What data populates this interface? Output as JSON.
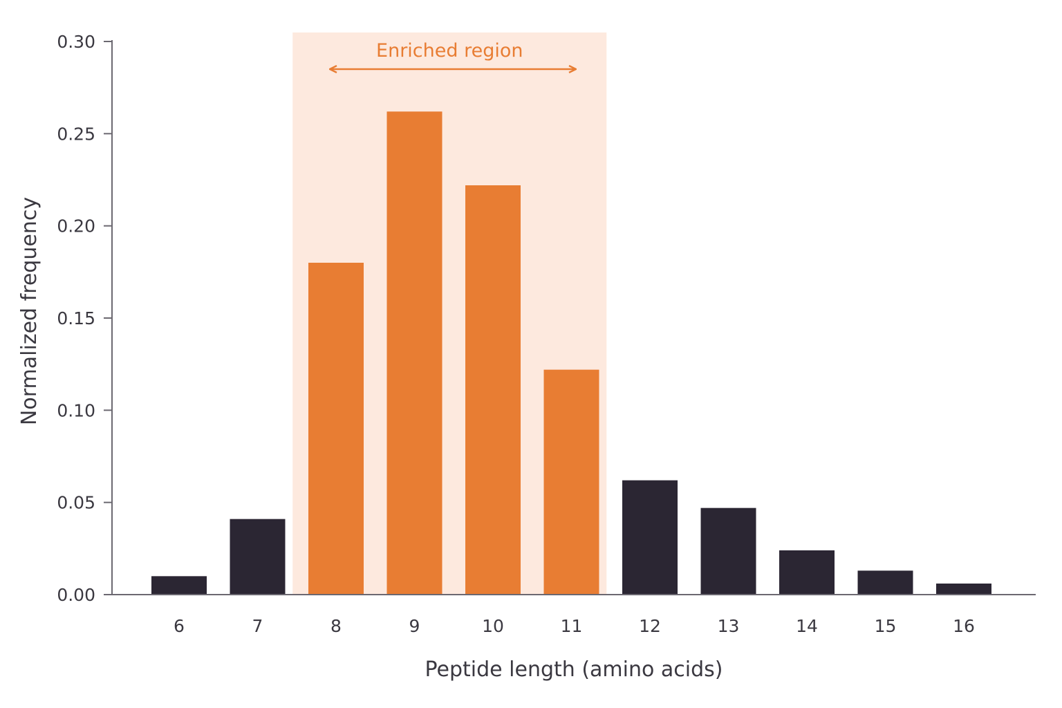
{
  "chart_data": {
    "type": "bar",
    "title": "",
    "xlabel": "Peptide length (amino acids)",
    "ylabel": "Normalized frequency",
    "categories": [
      "6",
      "7",
      "8",
      "9",
      "10",
      "11",
      "12",
      "13",
      "14",
      "15",
      "16"
    ],
    "values": [
      0.01,
      0.041,
      0.18,
      0.262,
      0.222,
      0.122,
      0.062,
      0.047,
      0.024,
      0.013,
      0.006
    ],
    "ylim": [
      0,
      0.3
    ],
    "yticks": [
      "0.00",
      "0.05",
      "0.10",
      "0.15",
      "0.20",
      "0.25",
      "0.30"
    ],
    "highlight": {
      "label": "Enriched region",
      "categories": [
        "8",
        "9",
        "10",
        "11"
      ],
      "color": "#e87d33",
      "band_color": "#fde9de"
    },
    "default_bar_color": "#2b2633",
    "axis_color": "#6b6870",
    "grid": false,
    "legend": "none"
  }
}
